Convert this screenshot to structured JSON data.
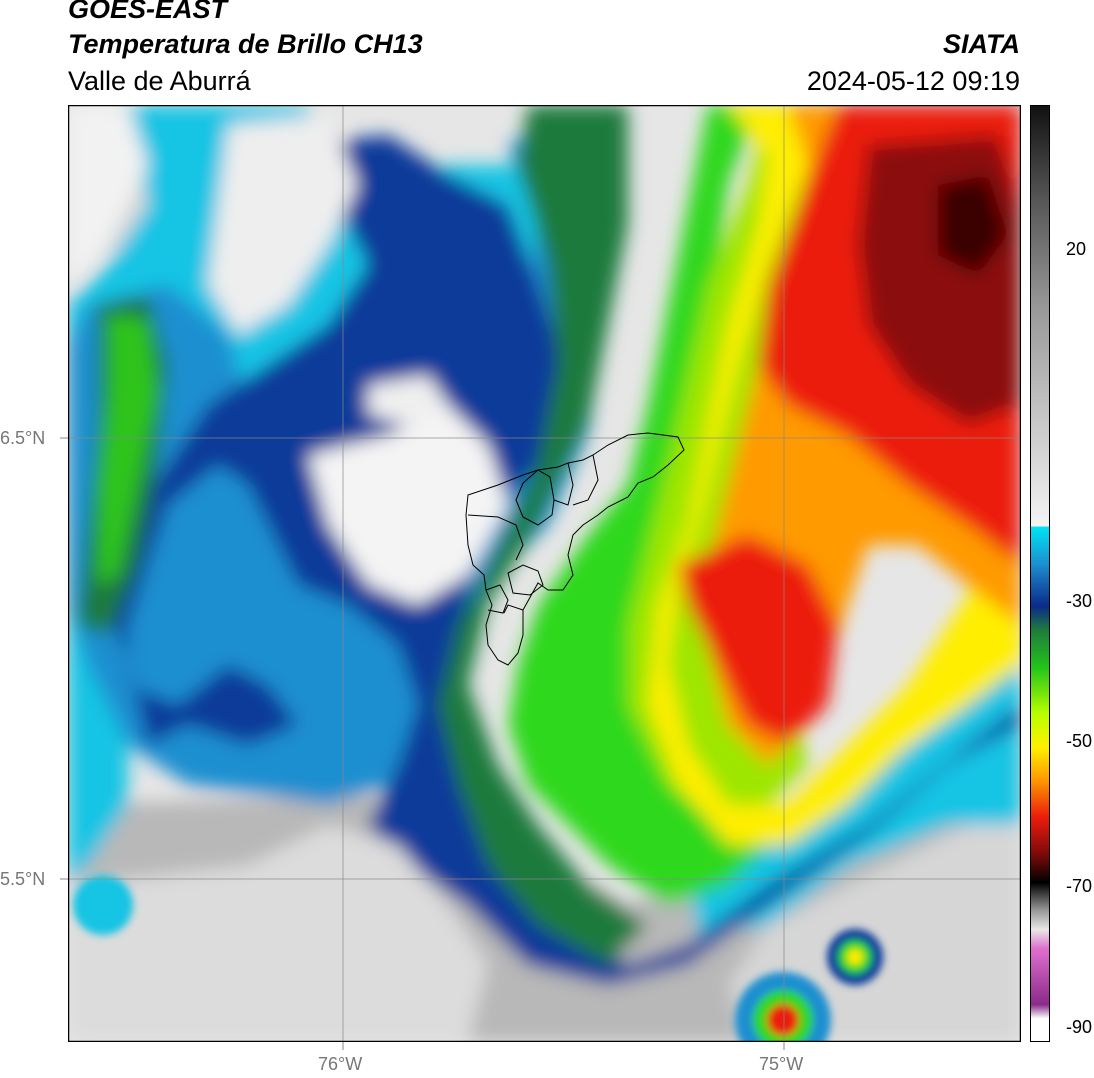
{
  "header": {
    "satellite": "GOES-EAST",
    "product": "Temperatura de Brillo CH13",
    "region": "Valle de Aburrá",
    "brand": "SIATA",
    "datetime": "2024-05-12 09:19"
  },
  "axes": {
    "lat_labels": [
      "6.5°N",
      "5.5°N"
    ],
    "lon_labels": [
      "76°W",
      "75°W"
    ]
  },
  "colorbar": {
    "tick_labels": [
      "20",
      "-30",
      "-50",
      "-70",
      "-90"
    ],
    "ticks": [
      20,
      -30,
      -50,
      -70,
      -90
    ],
    "range": [
      -92,
      37
    ]
  },
  "palette": {
    "white": "#f2f2f2",
    "gray": "#b4b4b4",
    "cyan": "#00d7ec",
    "blue_light": "#1d8fd0",
    "blue_dark": "#0a3394",
    "green_dark": "#1e7a3e",
    "green": "#2fd81a",
    "lime": "#b8ff00",
    "yellow": "#fff100",
    "orange": "#ff9a00",
    "red": "#ec1c0c",
    "dark_red": "#6e0d0d",
    "magenta": "#d94fc8"
  }
}
